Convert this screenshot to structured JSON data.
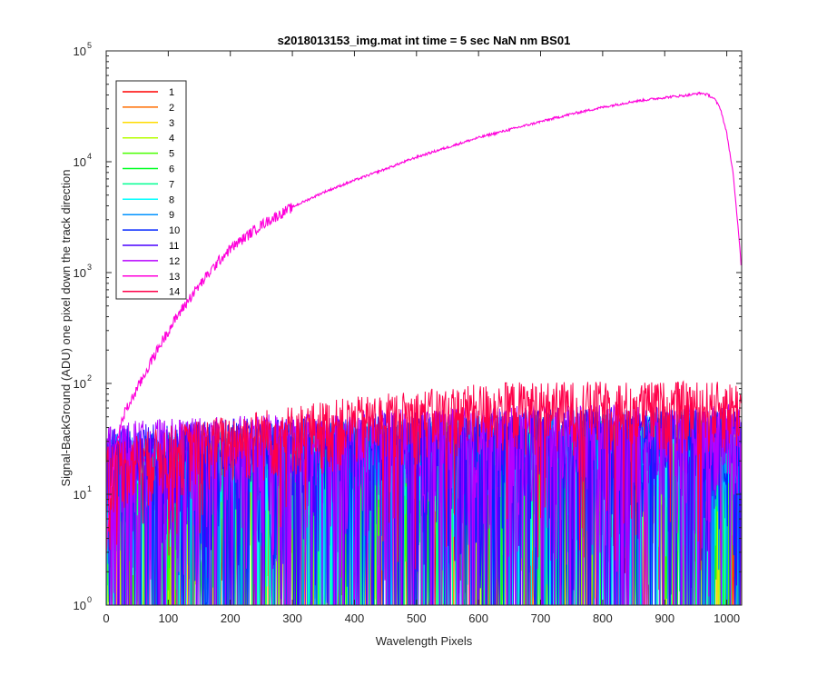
{
  "chart_data": {
    "type": "line",
    "title": "s2018013153_img.mat int time = 5 sec  NaN nm BS01",
    "xlabel": "Wavelength Pixels",
    "ylabel": "Signal-BackGround (ADU) one pixel down the track direction",
    "xlim": [
      0,
      1024
    ],
    "ylim": [
      1,
      100000
    ],
    "yscale": "log",
    "grid": false,
    "legend_position": "top-left",
    "x_ticks": [
      0,
      100,
      200,
      300,
      400,
      500,
      600,
      700,
      800,
      900,
      1000
    ],
    "y_ticks": [
      {
        "value": 1,
        "base": "10",
        "exp": "0"
      },
      {
        "value": 10,
        "base": "10",
        "exp": "1"
      },
      {
        "value": 100,
        "base": "10",
        "exp": "2"
      },
      {
        "value": 1000,
        "base": "10",
        "exp": "3"
      },
      {
        "value": 10000,
        "base": "10",
        "exp": "4"
      },
      {
        "value": 100000,
        "base": "10",
        "exp": "5"
      }
    ],
    "series": [
      {
        "name": "1",
        "color": "#ff0000"
      },
      {
        "name": "2",
        "color": "#ff6d00"
      },
      {
        "name": "3",
        "color": "#ffdb00"
      },
      {
        "name": "4",
        "color": "#b6ff00"
      },
      {
        "name": "5",
        "color": "#49ff00"
      },
      {
        "name": "6",
        "color": "#00ff24"
      },
      {
        "name": "7",
        "color": "#00ff92"
      },
      {
        "name": "8",
        "color": "#00ffff"
      },
      {
        "name": "9",
        "color": "#0092ff"
      },
      {
        "name": "10",
        "color": "#0024ff"
      },
      {
        "name": "11",
        "color": "#4900ff"
      },
      {
        "name": "12",
        "color": "#b600ff"
      },
      {
        "name": "13",
        "color": "#ff00db",
        "x": [
          0,
          5,
          10,
          15,
          20,
          25,
          30,
          40,
          50,
          60,
          70,
          80,
          90,
          100,
          120,
          140,
          160,
          180,
          200,
          250,
          300,
          350,
          400,
          450,
          500,
          550,
          600,
          650,
          700,
          750,
          800,
          850,
          900,
          920,
          940,
          950,
          960,
          970,
          980,
          990,
          1000,
          1010,
          1020,
          1024
        ],
        "values": [
          3,
          8,
          15,
          25,
          35,
          45,
          55,
          70,
          90,
          115,
          150,
          190,
          240,
          300,
          450,
          650,
          900,
          1250,
          1650,
          2700,
          3900,
          5300,
          6800,
          8600,
          11000,
          13500,
          16500,
          19500,
          23000,
          27000,
          31000,
          35000,
          38000,
          39000,
          40000,
          41000,
          41500,
          40000,
          37000,
          30000,
          18000,
          8000,
          2000,
          1000
        ]
      },
      {
        "name": "14",
        "color": "#ff0049"
      }
    ],
    "noise_note_series_1_12": "noisy traces between 1 and about 60 across all pixels",
    "noise_note_series_14": "noisy trace rising from about 20 to about 60 across all pixels"
  }
}
